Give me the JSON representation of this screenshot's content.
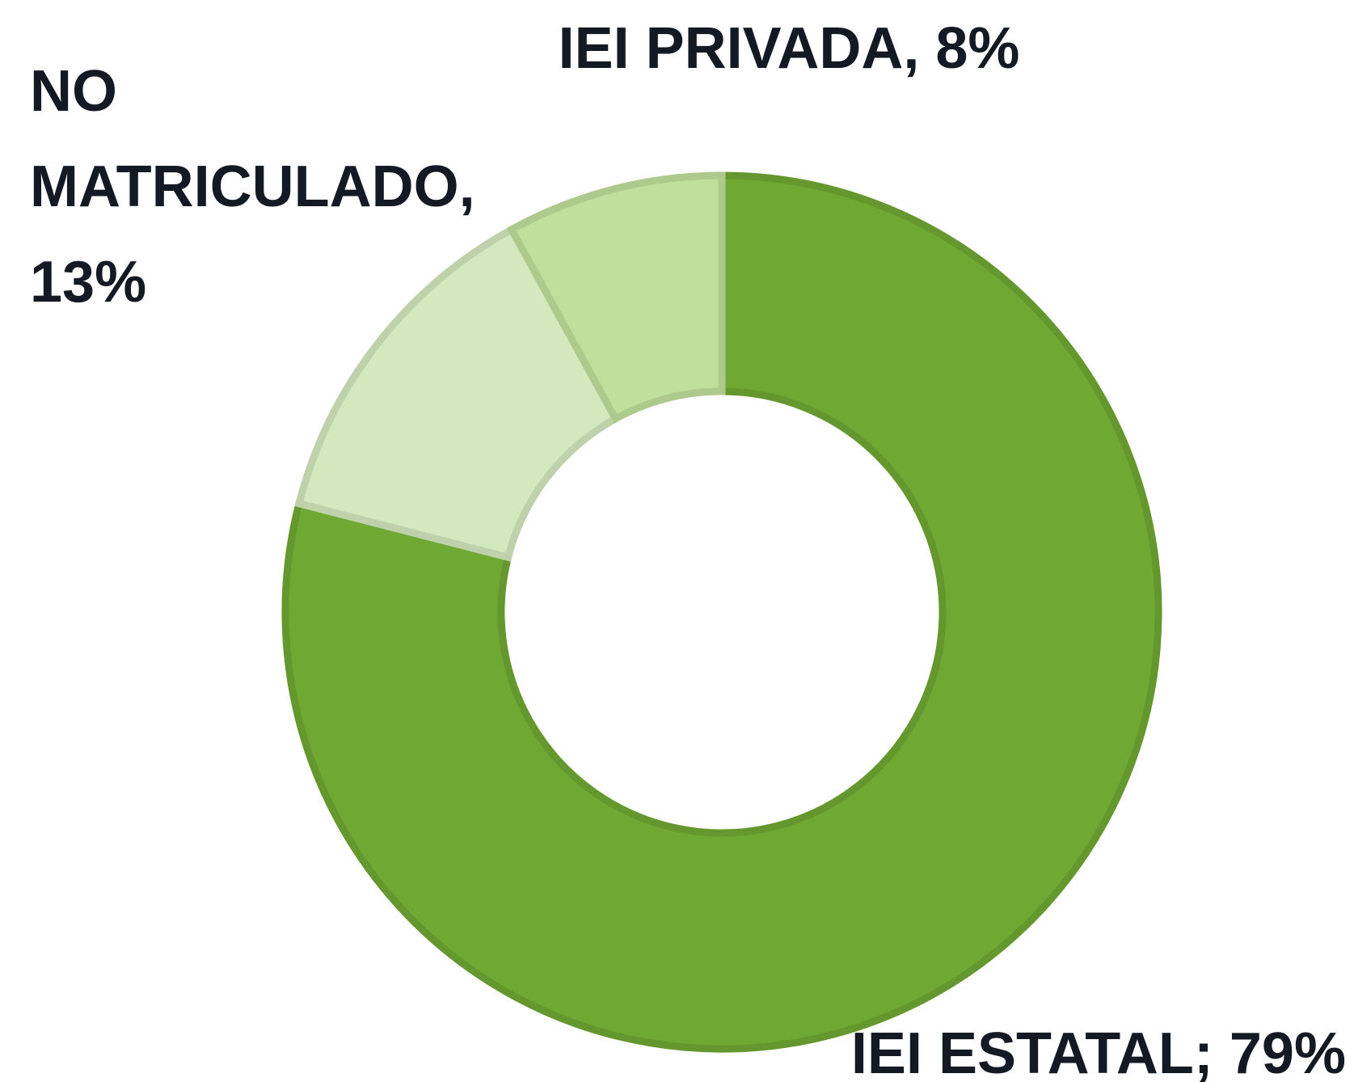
{
  "chart_data": {
    "type": "donut",
    "categories": [
      "IEI ESTATAL",
      "NO MATRICULADO",
      "IEI PRIVADA"
    ],
    "values": [
      79,
      13,
      8
    ],
    "value_labels": [
      "IEI ESTATAL; 79%",
      "NO MATRICULADO, 13%",
      "IEI PRIVADA, 8%"
    ],
    "colors": [
      "#6fa833",
      "#d4e8be",
      "#c0df9c"
    ]
  }
}
